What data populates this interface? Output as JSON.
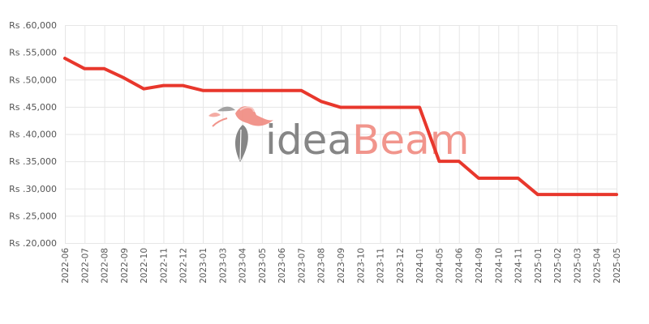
{
  "watermark": {
    "part1": "idea",
    "part2": "Beam",
    "color1": "#7a7a7a",
    "color2": "#f08a80"
  },
  "chart_data": {
    "type": "line",
    "title": "",
    "xlabel": "",
    "ylabel": "",
    "ylim": [
      20000,
      60000
    ],
    "yticks": [
      {
        "value": 60000,
        "label": "Rs .60,000"
      },
      {
        "value": 55000,
        "label": "Rs .55,000"
      },
      {
        "value": 50000,
        "label": "Rs .50,000"
      },
      {
        "value": 45000,
        "label": "Rs .45,000"
      },
      {
        "value": 40000,
        "label": "Rs .40,000"
      },
      {
        "value": 35000,
        "label": "Rs .35,000"
      },
      {
        "value": 30000,
        "label": "Rs .30,000"
      },
      {
        "value": 25000,
        "label": "Rs .25,000"
      },
      {
        "value": 20000,
        "label": "Rs .20,000"
      }
    ],
    "grid": true,
    "legend": "none",
    "series": [
      {
        "color": "#e8372c",
        "points": [
          {
            "x": "2022-06",
            "y": 53900
          },
          {
            "x": "2022-07",
            "y": 52000
          },
          {
            "x": "2022-08",
            "y": 52000
          },
          {
            "x": "2022-09",
            "y": 50300
          },
          {
            "x": "2022-10",
            "y": 48300
          },
          {
            "x": "2022-11",
            "y": 48900
          },
          {
            "x": "2022-12",
            "y": 48900
          },
          {
            "x": "2023-01",
            "y": 48000
          },
          {
            "x": "2023-03",
            "y": 48000
          },
          {
            "x": "2023-04",
            "y": 48000
          },
          {
            "x": "2023-05",
            "y": 48000
          },
          {
            "x": "2023-06",
            "y": 48000
          },
          {
            "x": "2023-07",
            "y": 48000
          },
          {
            "x": "2023-08",
            "y": 46000
          },
          {
            "x": "2023-09",
            "y": 44900
          },
          {
            "x": "2023-10",
            "y": 44900
          },
          {
            "x": "2023-11",
            "y": 44900
          },
          {
            "x": "2023-12",
            "y": 44900
          },
          {
            "x": "2024-01",
            "y": 44900
          },
          {
            "x": "2024-05",
            "y": 35000
          },
          {
            "x": "2024-06",
            "y": 35000
          },
          {
            "x": "2024-09",
            "y": 31900
          },
          {
            "x": "2024-10",
            "y": 31900
          },
          {
            "x": "2024-11",
            "y": 31900
          },
          {
            "x": "2025-01",
            "y": 28900
          },
          {
            "x": "2025-02",
            "y": 28900
          },
          {
            "x": "2025-03",
            "y": 28900
          },
          {
            "x": "2025-04",
            "y": 28900
          },
          {
            "x": "2025-05",
            "y": 28900
          }
        ]
      }
    ]
  }
}
